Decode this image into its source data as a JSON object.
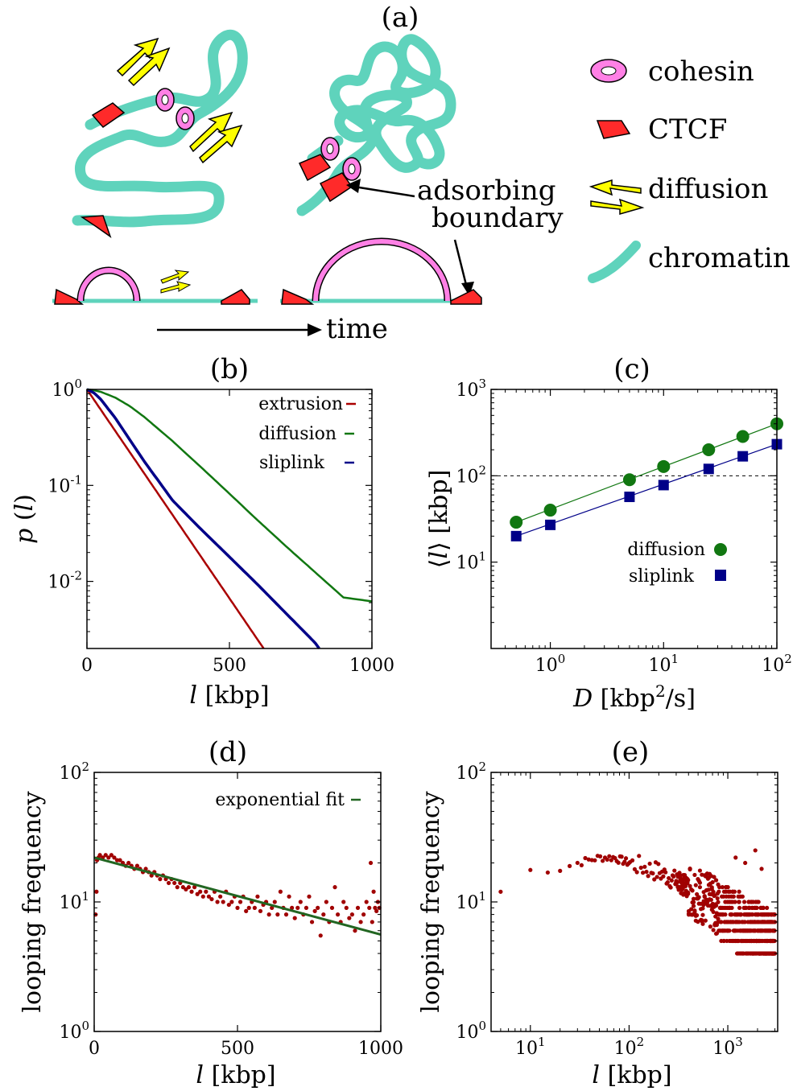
{
  "colors": {
    "chromatin": "#5fd3bc",
    "cohesin": "#ff80e5",
    "ctcf": "#ff2a2a",
    "diffusion_arrow": "#ffff00",
    "extrusion": "#aa0000",
    "diffusion": "#117711",
    "sliplink": "#000088",
    "points": "#a00000",
    "fit": "#226622"
  },
  "panel_a": {
    "label": "(a)",
    "legend": [
      {
        "icon": "cohesin-icon",
        "label": "cohesin"
      },
      {
        "icon": "ctcf-icon",
        "label": "CTCF"
      },
      {
        "icon": "diffusion-arrow-icon",
        "label": "diffusion"
      },
      {
        "icon": "chromatin-icon",
        "label": "chromatin"
      }
    ],
    "annotation_line1": "adsorbing",
    "annotation_line2": "boundary",
    "time_label": "time"
  },
  "chart_data": [
    {
      "panel": "(b)",
      "type": "line",
      "x_scale": "linear",
      "y_scale": "log",
      "xlim": [
        0,
        1000
      ],
      "ylim": [
        0.002,
        1
      ],
      "xticks": [
        0,
        500,
        1000
      ],
      "xtick_labels": [
        "0",
        "500",
        "1000"
      ],
      "yticks": [
        1,
        0.1,
        0.01
      ],
      "ytick_labels": [
        "10^0",
        "10^-1",
        "10^-2"
      ],
      "xlabel": "l [kbp]",
      "ylabel": "p (l)",
      "legend_position": "top-right",
      "series": [
        {
          "name": "extrusion",
          "x": [
            0,
            620
          ],
          "y": [
            1,
            0.002
          ]
        },
        {
          "name": "diffusion",
          "x": [
            0,
            25,
            50,
            100,
            150,
            200,
            300,
            400,
            500,
            600,
            700,
            800,
            900,
            1000
          ],
          "y": [
            1,
            0.98,
            0.94,
            0.82,
            0.67,
            0.52,
            0.29,
            0.155,
            0.082,
            0.043,
            0.023,
            0.0125,
            0.0068,
            0.0062
          ]
        },
        {
          "name": "sliplink",
          "x": [
            0,
            25,
            50,
            100,
            150,
            200,
            300,
            400,
            500,
            600,
            700,
            800,
            815
          ],
          "y": [
            1,
            0.92,
            0.78,
            0.5,
            0.3,
            0.18,
            0.07,
            0.035,
            0.018,
            0.0092,
            0.0046,
            0.0023,
            0.002
          ]
        }
      ]
    },
    {
      "panel": "(c)",
      "type": "scatter",
      "x_scale": "log",
      "y_scale": "log",
      "xlim": [
        0.3,
        100
      ],
      "ylim": [
        1,
        1000
      ],
      "xticks": [
        1,
        10,
        100
      ],
      "xtick_labels": [
        "10^0",
        "10^1",
        "10^2"
      ],
      "yticks": [
        10,
        100,
        1000
      ],
      "ytick_labels": [
        "10^1",
        "10^2",
        "10^3"
      ],
      "xlabel": "D [kbp^2/s]",
      "ylabel": "⟨l⟩ [kbp]",
      "reference_line_y": 100,
      "legend_position": "lower-right",
      "series": [
        {
          "name": "diffusion",
          "marker": "circle",
          "x": [
            0.5,
            1,
            5,
            10,
            25,
            50,
            100
          ],
          "y": [
            29,
            40,
            90,
            128,
            200,
            285,
            400
          ]
        },
        {
          "name": "sliplink",
          "marker": "square",
          "x": [
            0.5,
            1,
            5,
            10,
            25,
            50,
            100
          ],
          "y": [
            20,
            27,
            57,
            78,
            120,
            168,
            232
          ]
        }
      ]
    },
    {
      "panel": "(d)",
      "type": "scatter",
      "x_scale": "linear",
      "y_scale": "log",
      "xlim": [
        0,
        1000
      ],
      "ylim": [
        1,
        100
      ],
      "xticks": [
        0,
        500,
        1000
      ],
      "xtick_labels": [
        "0",
        "500",
        "1000"
      ],
      "yticks": [
        1,
        10,
        100
      ],
      "ytick_labels": [
        "10^0",
        "10^1",
        "10^2"
      ],
      "xlabel": "l [kbp]",
      "ylabel": "looping frequency",
      "legend_position": "top-right",
      "fit": {
        "name": "exponential fit",
        "x": [
          0,
          1000
        ],
        "y": [
          22,
          5.6
        ]
      },
      "points": [
        [
          5,
          8
        ],
        [
          8,
          12
        ],
        [
          10,
          21
        ],
        [
          15,
          22
        ],
        [
          20,
          23
        ],
        [
          30,
          22
        ],
        [
          40,
          23
        ],
        [
          50,
          22
        ],
        [
          60,
          23
        ],
        [
          70,
          22
        ],
        [
          80,
          21
        ],
        [
          90,
          21
        ],
        [
          100,
          20
        ],
        [
          110,
          19
        ],
        [
          120,
          20
        ],
        [
          130,
          19
        ],
        [
          140,
          18
        ],
        [
          150,
          19
        ],
        [
          160,
          18
        ],
        [
          170,
          17
        ],
        [
          180,
          18
        ],
        [
          190,
          17
        ],
        [
          200,
          16
        ],
        [
          210,
          17
        ],
        [
          220,
          16
        ],
        [
          230,
          15
        ],
        [
          240,
          16
        ],
        [
          250,
          15
        ],
        [
          260,
          14
        ],
        [
          270,
          15
        ],
        [
          280,
          14
        ],
        [
          290,
          13
        ],
        [
          300,
          14
        ],
        [
          310,
          13
        ],
        [
          320,
          12.5
        ],
        [
          330,
          13
        ],
        [
          340,
          12
        ],
        [
          350,
          13
        ],
        [
          360,
          11.5
        ],
        [
          370,
          12
        ],
        [
          380,
          11
        ],
        [
          390,
          12
        ],
        [
          400,
          11
        ],
        [
          410,
          10.5
        ],
        [
          420,
          12
        ],
        [
          430,
          10
        ],
        [
          440,
          11
        ],
        [
          450,
          10
        ],
        [
          460,
          12
        ],
        [
          470,
          9.5
        ],
        [
          480,
          10
        ],
        [
          490,
          11
        ],
        [
          500,
          9
        ],
        [
          510,
          10
        ],
        [
          520,
          11
        ],
        [
          530,
          8.5
        ],
        [
          540,
          9
        ],
        [
          550,
          10
        ],
        [
          560,
          9
        ],
        [
          570,
          11
        ],
        [
          580,
          8.5
        ],
        [
          590,
          9.5
        ],
        [
          600,
          10
        ],
        [
          610,
          8
        ],
        [
          620,
          9
        ],
        [
          630,
          10
        ],
        [
          640,
          8
        ],
        [
          650,
          12
        ],
        [
          660,
          9
        ],
        [
          670,
          8
        ],
        [
          680,
          11
        ],
        [
          690,
          9
        ],
        [
          700,
          7.5
        ],
        [
          710,
          9
        ],
        [
          720,
          10
        ],
        [
          730,
          8
        ],
        [
          740,
          9
        ],
        [
          750,
          11
        ],
        [
          760,
          7
        ],
        [
          770,
          8.5
        ],
        [
          780,
          9
        ],
        [
          790,
          5.5
        ],
        [
          800,
          8
        ],
        [
          810,
          10
        ],
        [
          820,
          7
        ],
        [
          830,
          9
        ],
        [
          840,
          13
        ],
        [
          850,
          8
        ],
        [
          860,
          7
        ],
        [
          870,
          10
        ],
        [
          880,
          9
        ],
        [
          890,
          7.5
        ],
        [
          900,
          8
        ],
        [
          910,
          6
        ],
        [
          920,
          9
        ],
        [
          930,
          7
        ],
        [
          940,
          8
        ],
        [
          950,
          10
        ],
        [
          960,
          9
        ],
        [
          965,
          20
        ],
        [
          970,
          7
        ],
        [
          975,
          12
        ],
        [
          980,
          9
        ],
        [
          985,
          8.5
        ],
        [
          990,
          10
        ],
        [
          995,
          9
        ]
      ]
    },
    {
      "panel": "(e)",
      "type": "scatter",
      "x_scale": "log",
      "y_scale": "log",
      "xlim": [
        4,
        3200
      ],
      "ylim": [
        1,
        100
      ],
      "xticks": [
        10,
        100,
        1000
      ],
      "xtick_labels": [
        "10^1",
        "10^2",
        "10^3"
      ],
      "yticks": [
        1,
        10,
        100
      ],
      "ytick_labels": [
        "10^0",
        "10^1",
        "10^2"
      ],
      "xlabel": "l [kbp]",
      "ylabel": "looping frequency",
      "trend": {
        "x": [
          5,
          10,
          20,
          30,
          50,
          70,
          100,
          200,
          400,
          800,
          1500,
          3000
        ],
        "y": [
          12,
          17.5,
          18,
          20,
          22,
          22,
          20,
          17,
          13,
          9,
          6.5,
          5
        ]
      }
    }
  ]
}
